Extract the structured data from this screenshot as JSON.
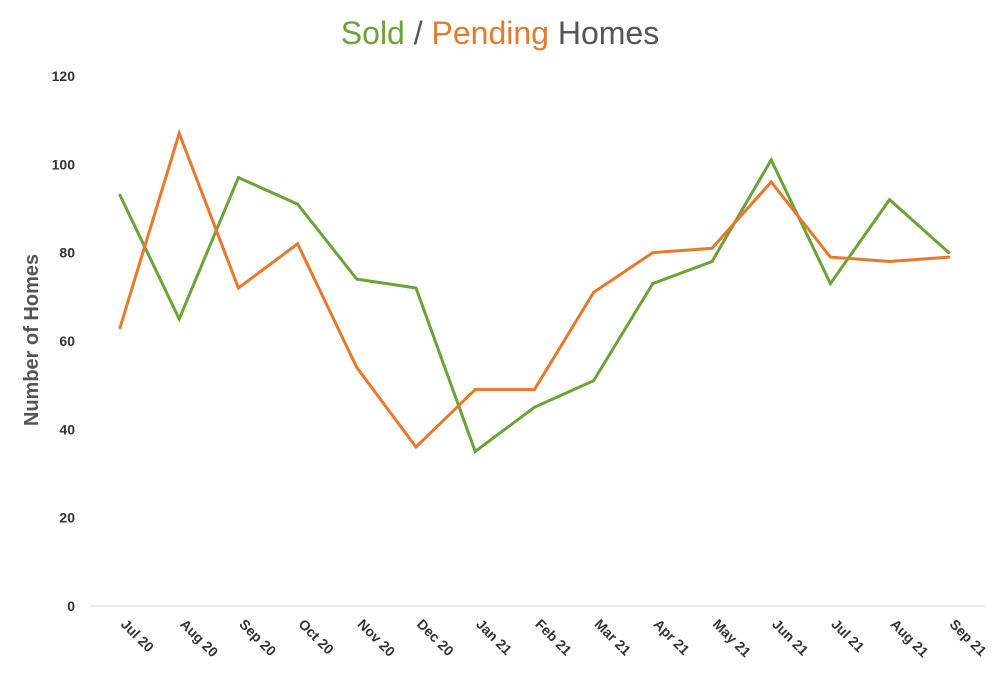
{
  "chart_data": {
    "type": "line",
    "title_parts": [
      {
        "text": "Sold",
        "color": "#6aa436"
      },
      {
        "text": " / ",
        "color": "#555555"
      },
      {
        "text": "Pending",
        "color": "#e8782a"
      },
      {
        "text": " Homes",
        "color": "#555555"
      }
    ],
    "xlabel": "",
    "ylabel": "Number of Homes",
    "ylim": [
      0,
      120
    ],
    "yticks": [
      0,
      20,
      40,
      60,
      80,
      100,
      120
    ],
    "grid": false,
    "categories": [
      "Jul 20",
      "Aug 20",
      "Sep 20",
      "Oct 20",
      "Nov 20",
      "Dec 20",
      "Jan 21",
      "Feb 21",
      "Mar 21",
      "Apr 21",
      "May 21",
      "Jun 21",
      "Jul 21",
      "Aug 21",
      "Sep 21"
    ],
    "series": [
      {
        "name": "Sold",
        "color": "#6aa436",
        "values": [
          93,
          65,
          97,
          91,
          74,
          72,
          35,
          45,
          51,
          73,
          78,
          101,
          73,
          92,
          80
        ]
      },
      {
        "name": "Pending",
        "color": "#e8782a",
        "values": [
          63,
          107,
          72,
          82,
          54,
          36,
          49,
          49,
          71,
          80,
          81,
          96,
          79,
          78,
          79
        ]
      }
    ]
  }
}
